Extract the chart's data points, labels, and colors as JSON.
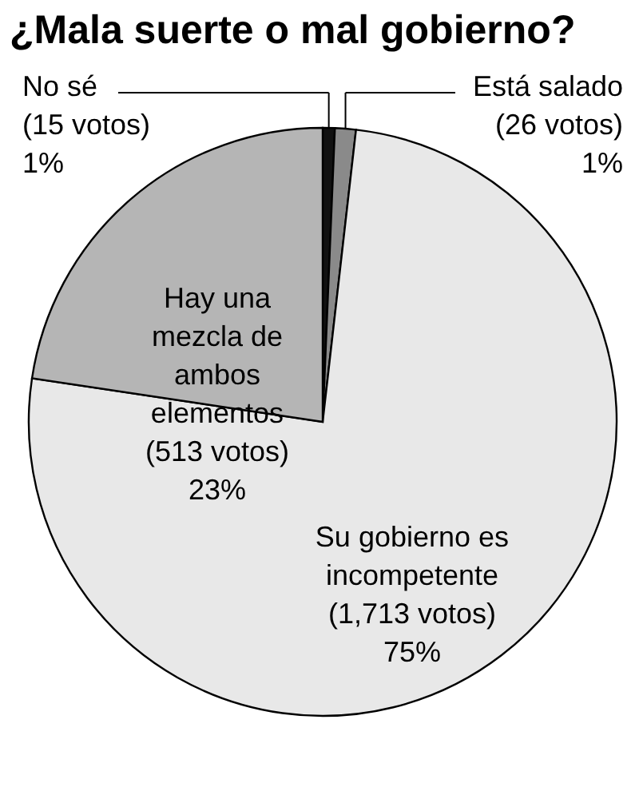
{
  "chart_data": {
    "type": "pie",
    "title": "¿Mala suerte o mal gobierno?",
    "categories": [
      "No sé",
      "Está salado",
      "Su gobierno es incompetente",
      "Hay una mezcla de ambos elementos"
    ],
    "values": [
      15,
      26,
      1713,
      513
    ],
    "colors": [
      "#111111",
      "#8a8a8a",
      "#e8e8e8",
      "#b5b5b5"
    ],
    "value_labels": [
      "(15 votos)\n1%",
      "(26 votos)\n1%",
      "(1,713 votos)\n75%",
      "(513 votos)\n23%"
    ]
  }
}
